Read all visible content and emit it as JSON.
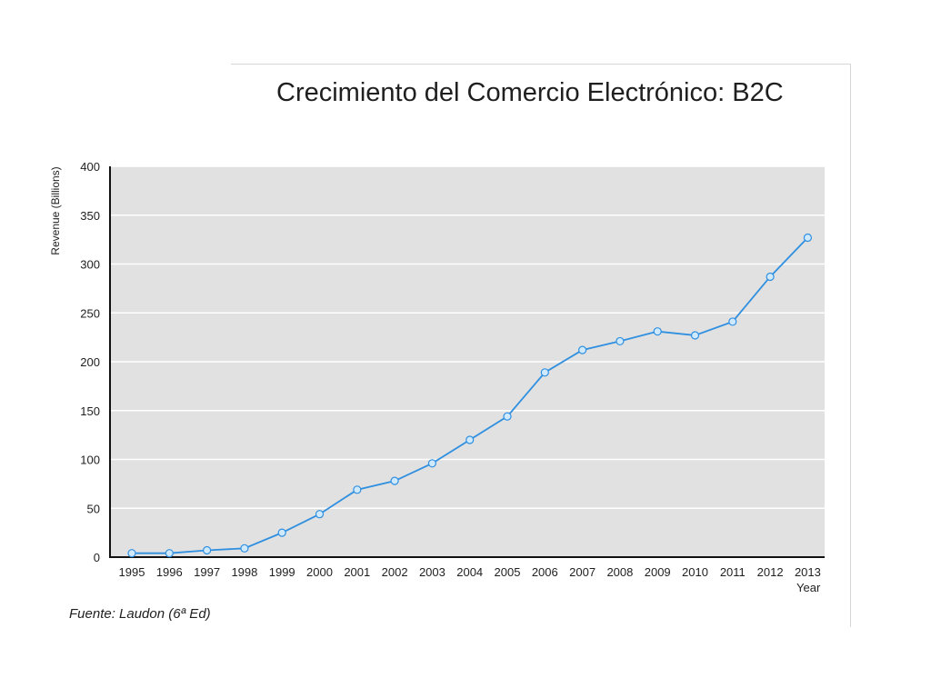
{
  "chart_data": {
    "type": "line",
    "title": "Crecimiento del Comercio Electrónico: B2C",
    "xlabel": "Year",
    "ylabel": "Revenue (Billions)",
    "ylim": [
      0,
      400
    ],
    "yticks": [
      0,
      50,
      100,
      150,
      200,
      250,
      300,
      350,
      400
    ],
    "grid": true,
    "categories": [
      "1995",
      "1996",
      "1997",
      "1998",
      "1999",
      "2000",
      "2001",
      "2002",
      "2003",
      "2004",
      "2005",
      "2006",
      "2007",
      "2008",
      "2009",
      "2010",
      "2011",
      "2012",
      "2013"
    ],
    "values": [
      4,
      4,
      7,
      9,
      25,
      44,
      69,
      78,
      96,
      120,
      144,
      189,
      212,
      221,
      231,
      227,
      241,
      287,
      327
    ],
    "colors": {
      "line": "#2f8fe0",
      "marker_fill": "#cfe9ff",
      "plot_background": "#e1e1e1",
      "grid": "#ffffff"
    }
  },
  "source": "Fuente: Laudon (6ª Ed)"
}
